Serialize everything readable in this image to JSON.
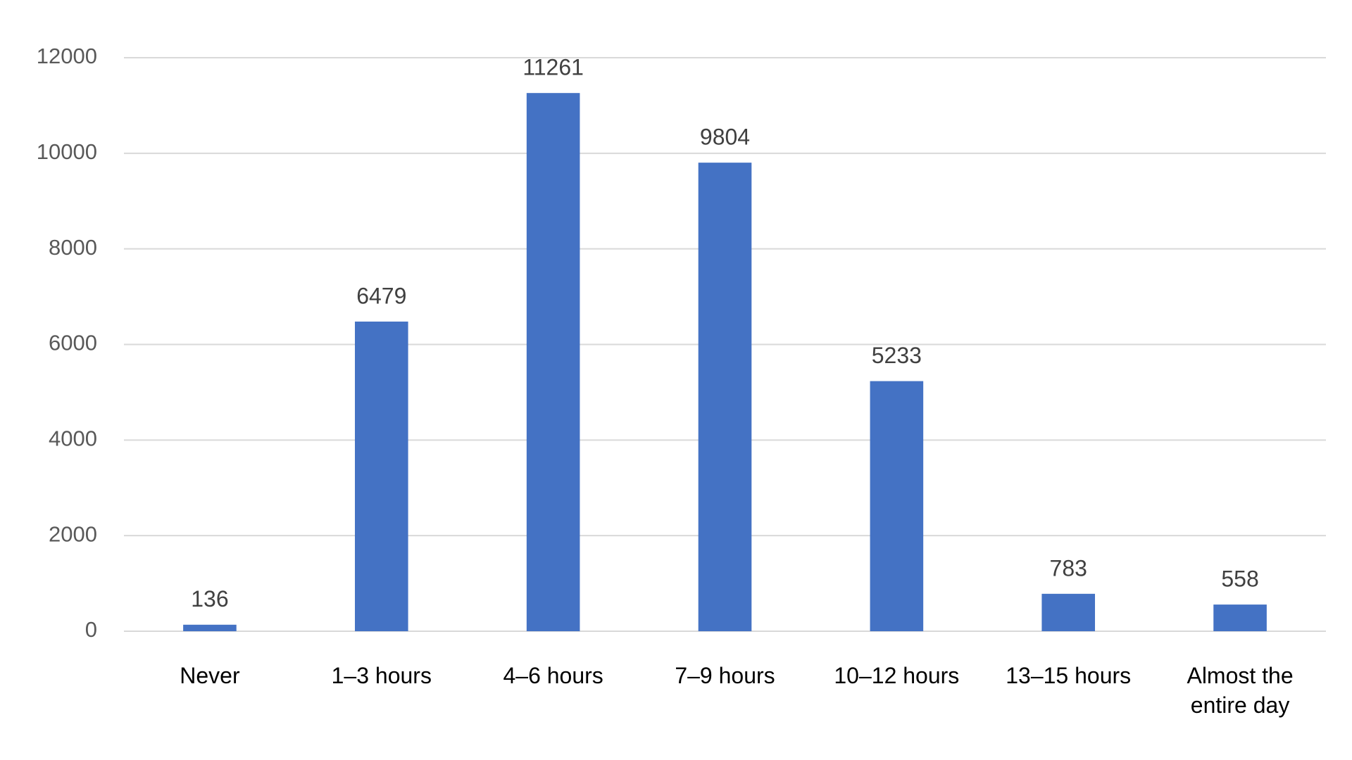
{
  "chart_data": {
    "type": "bar",
    "categories": [
      "Never",
      "1–3 hours",
      "4–6 hours",
      "7–9 hours",
      "10–12 hours",
      "13–15 hours",
      "Almost the entire day"
    ],
    "values": [
      136,
      6479,
      11261,
      9804,
      5233,
      783,
      558
    ],
    "color": "#4472c4",
    "ylim": [
      0,
      12000
    ],
    "yticks": [
      0,
      2000,
      4000,
      6000,
      8000,
      10000,
      12000
    ],
    "grid": true
  }
}
